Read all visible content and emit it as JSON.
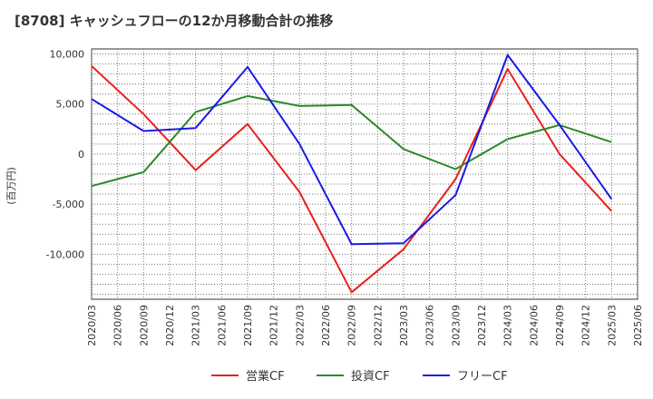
{
  "chart_data": {
    "type": "line",
    "title": "[8708]  キャッシュフローの12か月移動合計の推移",
    "ylabel": "(百万円)",
    "xlabel": "",
    "ylim": [
      -14500,
      10500
    ],
    "yticks": [
      10000,
      5000,
      0,
      -5000,
      -10000
    ],
    "ytick_labels": [
      "10,000",
      "5,000",
      "0",
      "-5,000",
      "-10,000"
    ],
    "categories": [
      "2020/03",
      "2020/06",
      "2020/09",
      "2020/12",
      "2021/03",
      "2021/06",
      "2021/09",
      "2021/12",
      "2022/03",
      "2022/06",
      "2022/09",
      "2022/12",
      "2023/03",
      "2023/06",
      "2023/09",
      "2023/12",
      "2024/03",
      "2024/06",
      "2024/09",
      "2024/12",
      "2025/03",
      "2025/06"
    ],
    "grid": true,
    "legend_position": "bottom",
    "series": [
      {
        "name": "営業CF",
        "color": "#e8201e",
        "points": [
          [
            "2020/03",
            8800
          ],
          [
            "2020/09",
            4000
          ],
          [
            "2021/03",
            -1600
          ],
          [
            "2021/09",
            3000
          ],
          [
            "2022/03",
            -3800
          ],
          [
            "2022/09",
            -13800
          ],
          [
            "2023/03",
            -9500
          ],
          [
            "2023/09",
            -2500
          ],
          [
            "2024/03",
            8500
          ],
          [
            "2024/09",
            0
          ],
          [
            "2025/03",
            -5700
          ]
        ]
      },
      {
        "name": "投資CF",
        "color": "#2a8a2a",
        "points": [
          [
            "2020/03",
            -3200
          ],
          [
            "2020/09",
            -1800
          ],
          [
            "2021/03",
            4200
          ],
          [
            "2021/09",
            5800
          ],
          [
            "2022/03",
            4800
          ],
          [
            "2022/09",
            4900
          ],
          [
            "2023/03",
            500
          ],
          [
            "2023/09",
            -1500
          ],
          [
            "2024/03",
            1500
          ],
          [
            "2024/09",
            2900
          ],
          [
            "2025/03",
            1200
          ]
        ]
      },
      {
        "name": "フリーCF",
        "color": "#1a1ae6",
        "points": [
          [
            "2020/03",
            5500
          ],
          [
            "2020/09",
            2300
          ],
          [
            "2021/03",
            2600
          ],
          [
            "2021/09",
            8700
          ],
          [
            "2022/03",
            1000
          ],
          [
            "2022/09",
            -9000
          ],
          [
            "2023/03",
            -8900
          ],
          [
            "2023/09",
            -4100
          ],
          [
            "2024/03",
            9900
          ],
          [
            "2024/09",
            2900
          ],
          [
            "2025/03",
            -4500
          ]
        ]
      }
    ]
  }
}
